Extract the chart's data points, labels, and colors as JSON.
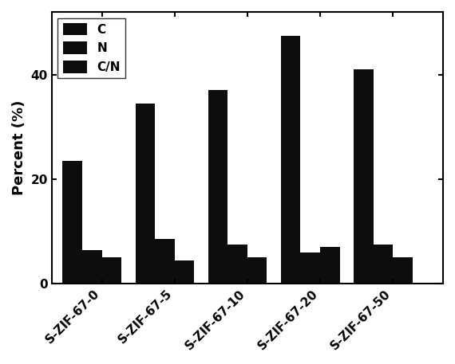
{
  "categories": [
    "S-ZIF-67-0",
    "S-ZIF-67-5",
    "S-ZIF-67-10",
    "S-ZIF-67-20",
    "S-ZIF-67-50"
  ],
  "C": [
    23.5,
    34.5,
    37.0,
    47.5,
    41.0
  ],
  "N": [
    6.5,
    8.5,
    7.5,
    6.0,
    7.5
  ],
  "CN": [
    5.0,
    4.5,
    5.0,
    7.0,
    5.0
  ],
  "bar_color": "#0d0d0d",
  "ylabel": "Percent (%)",
  "ylim": [
    0,
    52
  ],
  "yticks": [
    0,
    20,
    40
  ],
  "legend_labels": [
    "C",
    "N",
    "C/N"
  ],
  "bar_width": 0.27,
  "background_color": "#ffffff",
  "tick_labelsize": 11,
  "axis_labelsize": 13,
  "legend_fontsize": 11
}
